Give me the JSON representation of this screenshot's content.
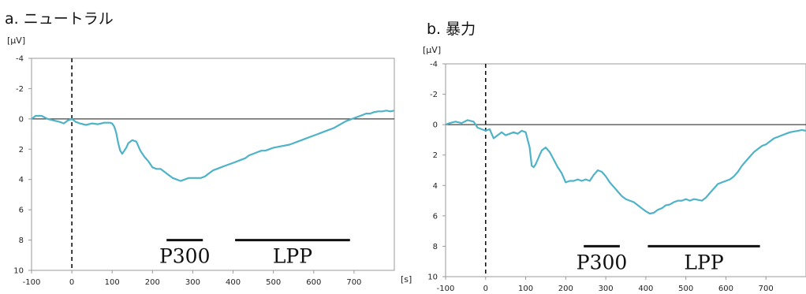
{
  "colors": {
    "trace": "#4fb3c8",
    "axis": "#999999",
    "zero_line": "#444444",
    "marker": "#111111"
  },
  "chart_data": [
    {
      "type": "line",
      "title": "a. ニュートラル",
      "ylabel": "[μV]",
      "xlabel": "[s]",
      "xlim": [
        -100,
        800
      ],
      "ylim": [
        -4,
        10
      ],
      "y_inverted": true,
      "xticks": [
        "-100",
        "0",
        "100",
        "200",
        "300",
        "400",
        "500",
        "600",
        "700"
      ],
      "yticks": [
        "-4",
        "-2",
        "0",
        "2",
        "4",
        "6",
        "8",
        "10"
      ],
      "onset_marker_x": 0,
      "periods": [
        {
          "label": "P300",
          "start": 235,
          "end": 325
        },
        {
          "label": "LPP",
          "start": 405,
          "end": 690
        }
      ],
      "series": [
        {
          "x": [
            -100,
            -90,
            -75,
            -60,
            -45,
            -30,
            -20,
            -10,
            0,
            10,
            20,
            35,
            50,
            65,
            80,
            95,
            100,
            105,
            110,
            115,
            120,
            125,
            130,
            135,
            140,
            150,
            160,
            170,
            180,
            190,
            200,
            210,
            220,
            230,
            240,
            250,
            260,
            270,
            280,
            290,
            300,
            310,
            320,
            330,
            340,
            350,
            360,
            370,
            380,
            390,
            400,
            410,
            420,
            430,
            440,
            450,
            460,
            470,
            480,
            490,
            500,
            510,
            520,
            530,
            540,
            550,
            560,
            570,
            580,
            590,
            600,
            610,
            620,
            630,
            640,
            650,
            660,
            670,
            680,
            690,
            700,
            710,
            720,
            730,
            740,
            750,
            760,
            770,
            780,
            790,
            800
          ],
          "y": [
            0.0,
            -0.2,
            -0.2,
            0.0,
            0.1,
            0.2,
            0.3,
            0.1,
            0.0,
            0.2,
            0.3,
            0.4,
            0.3,
            0.35,
            0.25,
            0.25,
            0.3,
            0.5,
            0.9,
            1.6,
            2.1,
            2.3,
            2.1,
            1.9,
            1.6,
            1.4,
            1.5,
            2.1,
            2.5,
            2.8,
            3.2,
            3.3,
            3.3,
            3.5,
            3.7,
            3.9,
            4.0,
            4.1,
            4.0,
            3.9,
            3.9,
            3.9,
            3.9,
            3.8,
            3.6,
            3.4,
            3.3,
            3.2,
            3.1,
            3.0,
            2.9,
            2.8,
            2.7,
            2.6,
            2.4,
            2.3,
            2.2,
            2.1,
            2.1,
            2.0,
            1.9,
            1.85,
            1.8,
            1.75,
            1.7,
            1.6,
            1.5,
            1.4,
            1.3,
            1.2,
            1.1,
            1.0,
            0.9,
            0.8,
            0.7,
            0.6,
            0.45,
            0.3,
            0.15,
            0.05,
            -0.05,
            -0.15,
            -0.25,
            -0.35,
            -0.35,
            -0.45,
            -0.5,
            -0.5,
            -0.55,
            -0.5,
            -0.55
          ]
        }
      ]
    },
    {
      "type": "line",
      "title": "b. 暴力",
      "ylabel": "[μV]",
      "xlabel": "[s]",
      "xlim": [
        -100,
        800
      ],
      "ylim": [
        -4,
        10
      ],
      "y_inverted": true,
      "xticks": [
        "-100",
        "0",
        "100",
        "200",
        "300",
        "400",
        "500",
        "600",
        "700"
      ],
      "yticks": [
        "-4",
        "-2",
        "0",
        "2",
        "4",
        "6",
        "8",
        "10"
      ],
      "onset_marker_x": 0,
      "periods": [
        {
          "label": "P300",
          "start": 245,
          "end": 335
        },
        {
          "label": "LPP",
          "start": 405,
          "end": 685
        }
      ],
      "series": [
        {
          "x": [
            -100,
            -90,
            -75,
            -60,
            -45,
            -30,
            -20,
            -10,
            0,
            10,
            20,
            30,
            40,
            50,
            60,
            70,
            80,
            90,
            100,
            110,
            115,
            120,
            125,
            130,
            135,
            140,
            150,
            160,
            170,
            180,
            190,
            200,
            210,
            220,
            230,
            240,
            250,
            260,
            270,
            280,
            290,
            300,
            310,
            320,
            330,
            340,
            350,
            360,
            370,
            380,
            390,
            400,
            410,
            420,
            430,
            440,
            450,
            460,
            470,
            480,
            490,
            500,
            510,
            520,
            530,
            540,
            550,
            560,
            570,
            580,
            590,
            600,
            610,
            620,
            630,
            640,
            650,
            660,
            670,
            680,
            690,
            700,
            710,
            720,
            730,
            740,
            750,
            760,
            770,
            780,
            790,
            800
          ],
          "y": [
            0.0,
            -0.1,
            -0.2,
            -0.1,
            -0.3,
            -0.2,
            0.2,
            0.3,
            0.4,
            0.3,
            0.9,
            0.7,
            0.5,
            0.7,
            0.6,
            0.5,
            0.6,
            0.4,
            0.5,
            1.5,
            2.7,
            2.8,
            2.6,
            2.3,
            2.0,
            1.7,
            1.5,
            1.8,
            2.3,
            2.8,
            3.2,
            3.8,
            3.7,
            3.7,
            3.6,
            3.7,
            3.6,
            3.7,
            3.3,
            3.0,
            3.1,
            3.4,
            3.8,
            4.1,
            4.4,
            4.7,
            4.9,
            5.0,
            5.1,
            5.3,
            5.5,
            5.7,
            5.85,
            5.8,
            5.6,
            5.5,
            5.3,
            5.25,
            5.1,
            5.0,
            5.0,
            4.9,
            5.0,
            4.9,
            4.95,
            5.0,
            4.8,
            4.5,
            4.2,
            3.9,
            3.8,
            3.7,
            3.6,
            3.4,
            3.1,
            2.7,
            2.4,
            2.1,
            1.8,
            1.6,
            1.4,
            1.3,
            1.1,
            0.9,
            0.8,
            0.7,
            0.6,
            0.5,
            0.45,
            0.4,
            0.35,
            0.4
          ]
        }
      ]
    }
  ]
}
